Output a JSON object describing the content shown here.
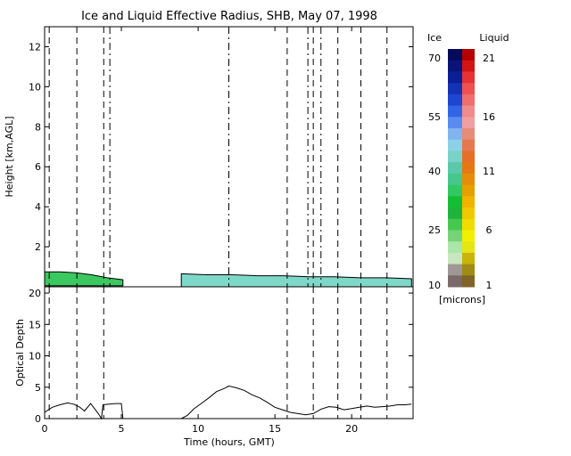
{
  "chart_data": [
    {
      "type": "heatmap",
      "title": "Ice and Liquid Effective Radius, SHB, May 07, 1998",
      "xlabel": "",
      "ylabel": "Height [km,AGL]",
      "xlim": [
        0,
        24
      ],
      "ylim": [
        0,
        13
      ],
      "y_ticks": [
        2,
        4,
        6,
        8,
        10,
        12
      ],
      "cloud_layers": [
        {
          "t_start": 0.0,
          "t_end": 5.1,
          "top_km": [
            0.75,
            0.75,
            0.7,
            0.6,
            0.45,
            0.35
          ],
          "base_km": 0.05,
          "phase": "liquid",
          "color": "#3cc860"
        },
        {
          "t_start": 8.9,
          "t_end": 23.9,
          "top_km": [
            0.65,
            0.6,
            0.6,
            0.55,
            0.55,
            0.5,
            0.5,
            0.45,
            0.45,
            0.4
          ],
          "base_km": 0.0,
          "phase": "mixed",
          "color": "#7ed8c8"
        }
      ],
      "vertical_markers": {
        "dashed_hours": [
          0.3,
          2.1,
          3.85,
          15.8,
          17.5,
          19.1,
          20.6,
          22.3
        ],
        "dashdot_hours": [
          4.25,
          12.0,
          17.15,
          18.0
        ]
      },
      "colorbar": {
        "units": "[microns]",
        "ice_label": "Ice",
        "liquid_label": "Liquid",
        "ice_ticks": [
          "70",
          "55",
          "40",
          "25",
          "10"
        ],
        "liquid_ticks": [
          "21",
          "16",
          "11",
          "6",
          "1"
        ],
        "ice_colors": [
          "#050a5a",
          "#0a1478",
          "#0a1e96",
          "#1432b4",
          "#1e46d2",
          "#3264e6",
          "#5a8cf0",
          "#82b4f0",
          "#8cd2e6",
          "#78d2c8",
          "#5ac8aa",
          "#46c88c",
          "#32c864",
          "#14be32",
          "#1eb43c",
          "#46c850",
          "#78d278",
          "#aae6aa",
          "#c8e6c0",
          "#a09896",
          "#7a6a6a"
        ],
        "liquid_colors": [
          "#b40000",
          "#d21414",
          "#e63232",
          "#f05050",
          "#f06e6e",
          "#f08c8c",
          "#f0a0a0",
          "#e68c78",
          "#e67850",
          "#e66e28",
          "#e67814",
          "#e68c0a",
          "#e6a000",
          "#f0b400",
          "#f0c800",
          "#f0dc00",
          "#f0f000",
          "#e6e614",
          "#c8b40a",
          "#a08c14",
          "#826428"
        ]
      }
    },
    {
      "type": "line",
      "title": "",
      "xlabel": "Time (hours, GMT)",
      "ylabel": "Optical Depth",
      "xlim": [
        0,
        24
      ],
      "ylim": [
        0,
        21
      ],
      "x_ticks": [
        0,
        5,
        10,
        15,
        20
      ],
      "y_ticks": [
        0,
        5,
        10,
        15,
        20
      ],
      "series": [
        {
          "x": [
            0.0,
            0.5,
            1.0,
            1.5,
            1.9,
            2.3,
            2.6,
            3.0,
            3.5,
            3.7,
            3.8,
            4.2,
            4.6,
            5.0,
            5.1,
            8.9,
            9.3,
            9.7,
            10.2,
            10.7,
            11.2,
            11.7,
            12.0,
            12.5,
            13.0,
            13.5,
            14.0,
            14.5,
            15.0,
            15.5,
            16.0,
            16.5,
            17.0,
            17.5,
            18.0,
            18.5,
            19.0,
            19.5,
            20.0,
            20.5,
            21.0,
            21.5,
            22.0,
            22.5,
            23.0,
            23.5,
            23.9
          ],
          "y": [
            1.0,
            1.8,
            2.2,
            2.5,
            2.3,
            1.8,
            1.2,
            2.4,
            0.8,
            0.0,
            2.2,
            2.3,
            2.4,
            2.4,
            0.0,
            0.0,
            0.5,
            1.5,
            2.4,
            3.3,
            4.3,
            4.8,
            5.2,
            4.9,
            4.5,
            3.8,
            3.3,
            2.6,
            1.8,
            1.4,
            1.0,
            0.8,
            0.6,
            0.8,
            1.5,
            1.9,
            1.8,
            1.4,
            1.6,
            1.8,
            2.0,
            1.8,
            1.9,
            2.0,
            2.2,
            2.2,
            2.3
          ]
        }
      ],
      "vertical_markers": {
        "dashed_hours": [
          0.3,
          2.1,
          3.85,
          15.8,
          17.5,
          19.1,
          20.6,
          22.3
        ]
      }
    }
  ]
}
